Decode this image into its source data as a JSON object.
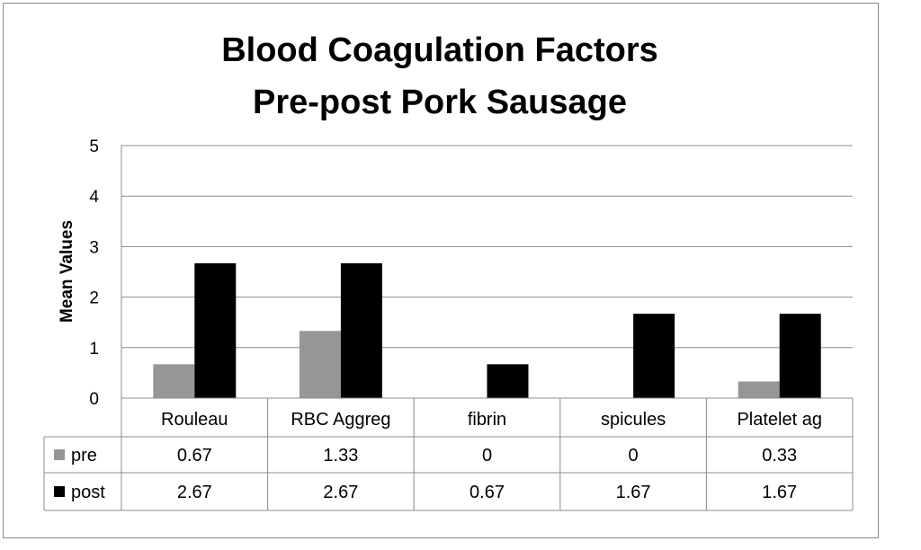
{
  "chart_data": {
    "type": "bar",
    "title": [
      "Blood Coagulation Factors",
      "Pre-post Pork Sausage"
    ],
    "ylabel": "Mean Values",
    "xlabel": "",
    "ylim": [
      0,
      5
    ],
    "yticks": [
      0,
      1,
      2,
      3,
      4,
      5
    ],
    "grid": true,
    "legend_placement": "data-table",
    "categories": [
      "Rouleau",
      "RBC Aggreg",
      "fibrin",
      "spicules",
      "Platelet ag"
    ],
    "series": [
      {
        "name": "pre",
        "color": "#969696",
        "values": [
          0.67,
          1.33,
          0,
          0,
          0.33
        ],
        "labels": [
          "0.67",
          "1.33",
          "0",
          "0",
          "0.33"
        ]
      },
      {
        "name": "post",
        "color": "#000000",
        "values": [
          2.67,
          2.67,
          0.67,
          1.67,
          1.67
        ],
        "labels": [
          "2.67",
          "2.67",
          "0.67",
          "1.67",
          "1.67"
        ]
      }
    ]
  }
}
